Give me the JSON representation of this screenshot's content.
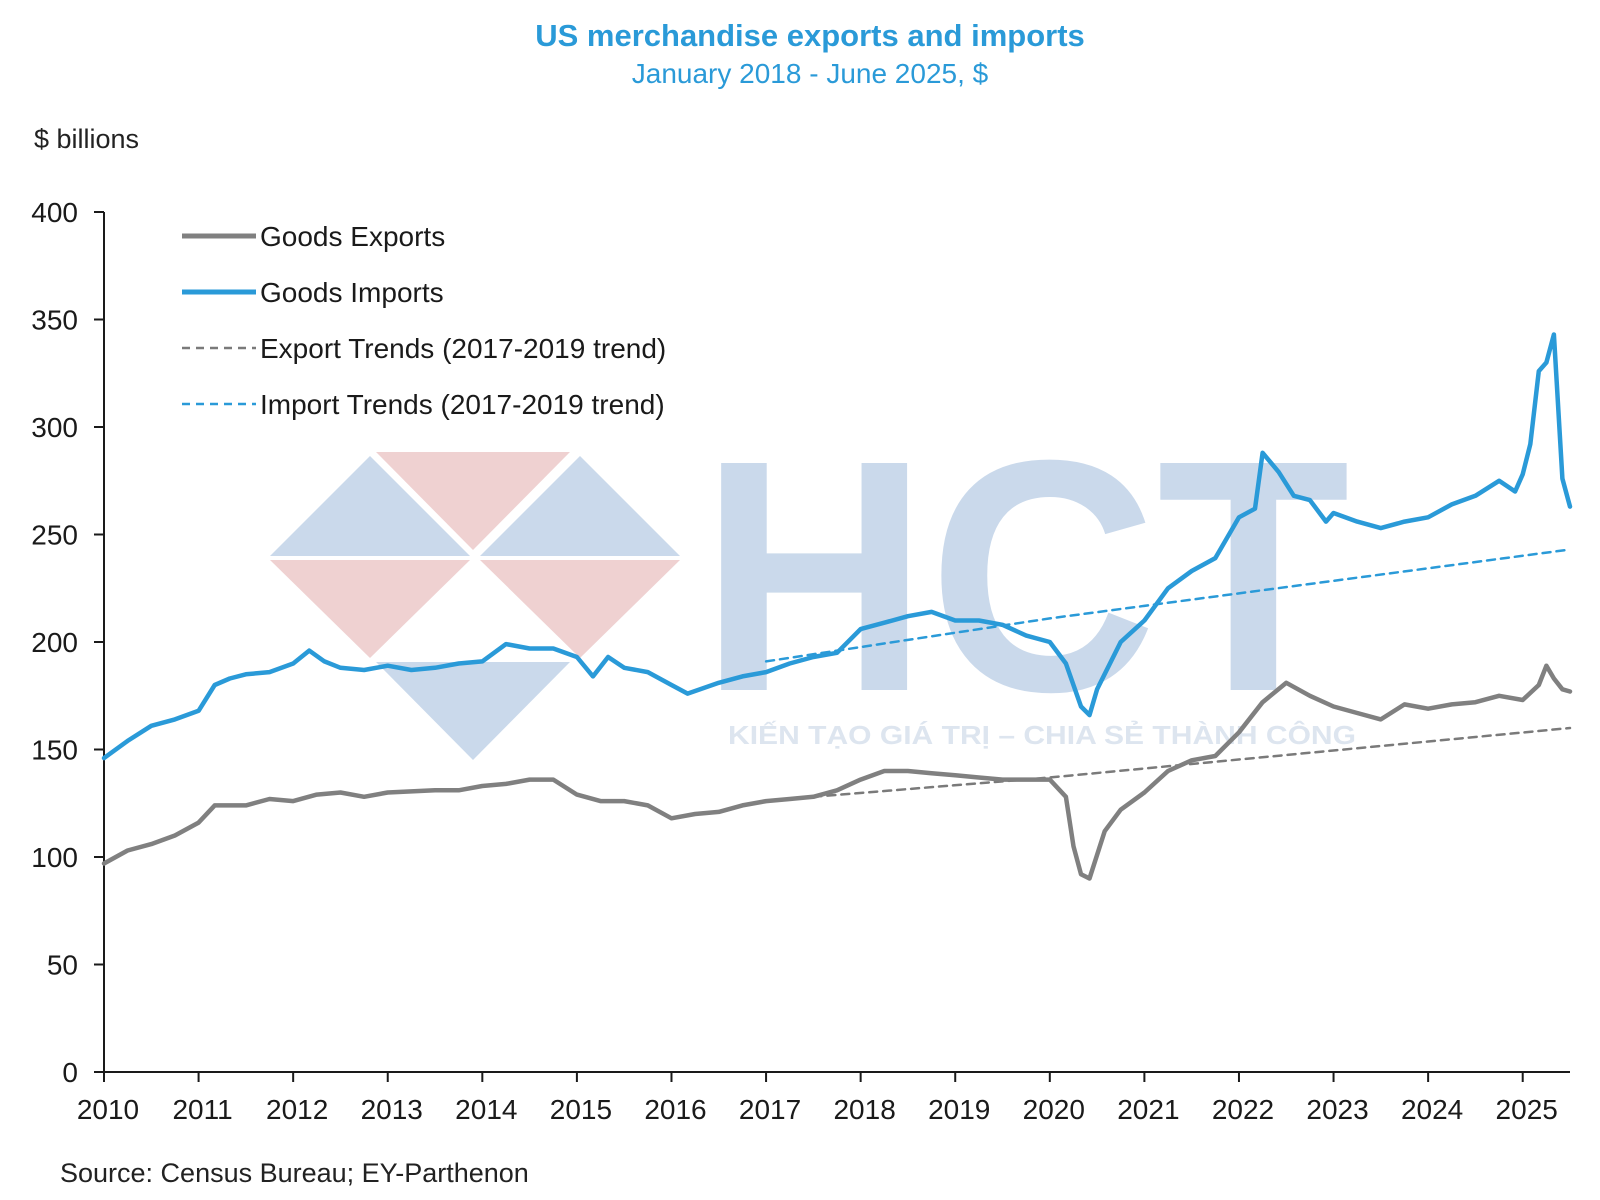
{
  "title": "US merchandise exports and imports",
  "subtitle": "January 2018 - June 2025, $",
  "unit_label": "$ billions",
  "source": "Source: Census Bureau; EY-Parthenon",
  "watermark": {
    "logo_text": "HCT",
    "tagline": "KIẾN TẠO GIÁ TRỊ – CHIA SẺ THÀNH CÔNG"
  },
  "colors": {
    "exports": "#808080",
    "imports": "#2a9ad8",
    "export_trend": "#7a7a7a",
    "import_trend": "#2a9ad8",
    "title": "#2a9ad8"
  },
  "chart_data": {
    "type": "line",
    "title": "US merchandise exports and imports",
    "subtitle": "January 2018 - June 2025, $",
    "ylabel": "$ billions",
    "xlabel": "",
    "xlim": [
      2010,
      2025.5
    ],
    "ylim": [
      0,
      400
    ],
    "x_ticks": [
      "2010",
      "2011",
      "2012",
      "2013",
      "2014",
      "2015",
      "2016",
      "2017",
      "2018",
      "2019",
      "2020",
      "2021",
      "2022",
      "2023",
      "2024",
      "2025"
    ],
    "y_ticks": [
      0,
      50,
      100,
      150,
      200,
      250,
      300,
      350,
      400
    ],
    "grid": false,
    "legend_position": "top-left",
    "series": [
      {
        "name": "Goods Exports",
        "style": "solid",
        "points": [
          [
            2010.0,
            97
          ],
          [
            2010.25,
            103
          ],
          [
            2010.5,
            106
          ],
          [
            2010.75,
            110
          ],
          [
            2011.0,
            116
          ],
          [
            2011.17,
            124
          ],
          [
            2011.5,
            124
          ],
          [
            2011.75,
            127
          ],
          [
            2012.0,
            126
          ],
          [
            2012.25,
            129
          ],
          [
            2012.5,
            130
          ],
          [
            2012.75,
            128
          ],
          [
            2013.0,
            130
          ],
          [
            2013.5,
            131
          ],
          [
            2013.75,
            131
          ],
          [
            2014.0,
            133
          ],
          [
            2014.25,
            134
          ],
          [
            2014.5,
            136
          ],
          [
            2014.75,
            136
          ],
          [
            2015.0,
            129
          ],
          [
            2015.25,
            126
          ],
          [
            2015.5,
            126
          ],
          [
            2015.75,
            124
          ],
          [
            2016.0,
            118
          ],
          [
            2016.25,
            120
          ],
          [
            2016.5,
            121
          ],
          [
            2016.75,
            124
          ],
          [
            2017.0,
            126
          ],
          [
            2017.25,
            127
          ],
          [
            2017.5,
            128
          ],
          [
            2017.75,
            131
          ],
          [
            2018.0,
            136
          ],
          [
            2018.25,
            140
          ],
          [
            2018.5,
            140
          ],
          [
            2018.75,
            139
          ],
          [
            2019.0,
            138
          ],
          [
            2019.25,
            137
          ],
          [
            2019.5,
            136
          ],
          [
            2019.75,
            136
          ],
          [
            2020.0,
            136
          ],
          [
            2020.17,
            128
          ],
          [
            2020.25,
            105
          ],
          [
            2020.33,
            92
          ],
          [
            2020.42,
            90
          ],
          [
            2020.58,
            112
          ],
          [
            2020.75,
            122
          ],
          [
            2021.0,
            130
          ],
          [
            2021.25,
            140
          ],
          [
            2021.5,
            145
          ],
          [
            2021.75,
            147
          ],
          [
            2022.0,
            158
          ],
          [
            2022.25,
            172
          ],
          [
            2022.5,
            181
          ],
          [
            2022.75,
            175
          ],
          [
            2023.0,
            170
          ],
          [
            2023.25,
            167
          ],
          [
            2023.5,
            164
          ],
          [
            2023.75,
            171
          ],
          [
            2024.0,
            169
          ],
          [
            2024.25,
            171
          ],
          [
            2024.5,
            172
          ],
          [
            2024.75,
            175
          ],
          [
            2025.0,
            173
          ],
          [
            2025.17,
            180
          ],
          [
            2025.25,
            189
          ],
          [
            2025.33,
            183
          ],
          [
            2025.42,
            178
          ],
          [
            2025.5,
            177
          ]
        ]
      },
      {
        "name": "Goods Imports",
        "style": "solid",
        "points": [
          [
            2010.0,
            146
          ],
          [
            2010.25,
            154
          ],
          [
            2010.5,
            161
          ],
          [
            2010.75,
            164
          ],
          [
            2011.0,
            168
          ],
          [
            2011.17,
            180
          ],
          [
            2011.33,
            183
          ],
          [
            2011.5,
            185
          ],
          [
            2011.75,
            186
          ],
          [
            2012.0,
            190
          ],
          [
            2012.17,
            196
          ],
          [
            2012.33,
            191
          ],
          [
            2012.5,
            188
          ],
          [
            2012.75,
            187
          ],
          [
            2013.0,
            189
          ],
          [
            2013.25,
            187
          ],
          [
            2013.5,
            188
          ],
          [
            2013.75,
            190
          ],
          [
            2014.0,
            191
          ],
          [
            2014.25,
            199
          ],
          [
            2014.5,
            197
          ],
          [
            2014.75,
            197
          ],
          [
            2015.0,
            193
          ],
          [
            2015.17,
            184
          ],
          [
            2015.33,
            193
          ],
          [
            2015.5,
            188
          ],
          [
            2015.75,
            186
          ],
          [
            2016.0,
            180
          ],
          [
            2016.17,
            176
          ],
          [
            2016.5,
            181
          ],
          [
            2016.75,
            184
          ],
          [
            2017.0,
            186
          ],
          [
            2017.25,
            190
          ],
          [
            2017.5,
            193
          ],
          [
            2017.75,
            195
          ],
          [
            2018.0,
            206
          ],
          [
            2018.25,
            209
          ],
          [
            2018.5,
            212
          ],
          [
            2018.75,
            214
          ],
          [
            2019.0,
            210
          ],
          [
            2019.25,
            210
          ],
          [
            2019.5,
            208
          ],
          [
            2019.75,
            203
          ],
          [
            2020.0,
            200
          ],
          [
            2020.17,
            190
          ],
          [
            2020.33,
            170
          ],
          [
            2020.42,
            166
          ],
          [
            2020.5,
            178
          ],
          [
            2020.75,
            200
          ],
          [
            2021.0,
            210
          ],
          [
            2021.25,
            225
          ],
          [
            2021.5,
            233
          ],
          [
            2021.75,
            239
          ],
          [
            2022.0,
            258
          ],
          [
            2022.17,
            262
          ],
          [
            2022.25,
            288
          ],
          [
            2022.42,
            279
          ],
          [
            2022.58,
            268
          ],
          [
            2022.75,
            266
          ],
          [
            2022.92,
            256
          ],
          [
            2023.0,
            260
          ],
          [
            2023.25,
            256
          ],
          [
            2023.5,
            253
          ],
          [
            2023.75,
            256
          ],
          [
            2024.0,
            258
          ],
          [
            2024.25,
            264
          ],
          [
            2024.5,
            268
          ],
          [
            2024.75,
            275
          ],
          [
            2024.92,
            270
          ],
          [
            2025.0,
            278
          ],
          [
            2025.08,
            292
          ],
          [
            2025.17,
            326
          ],
          [
            2025.25,
            330
          ],
          [
            2025.33,
            343
          ],
          [
            2025.42,
            276
          ],
          [
            2025.5,
            263
          ]
        ]
      },
      {
        "name": "Export Trends (2017-2019 trend)",
        "style": "dashed",
        "points": [
          [
            2017.5,
            128
          ],
          [
            2020.0,
            137
          ],
          [
            2025.5,
            160
          ]
        ]
      },
      {
        "name": "Import Trends (2017-2019 trend)",
        "style": "dashed",
        "points": [
          [
            2017.0,
            191
          ],
          [
            2020.0,
            211
          ],
          [
            2025.5,
            243
          ]
        ]
      }
    ]
  }
}
